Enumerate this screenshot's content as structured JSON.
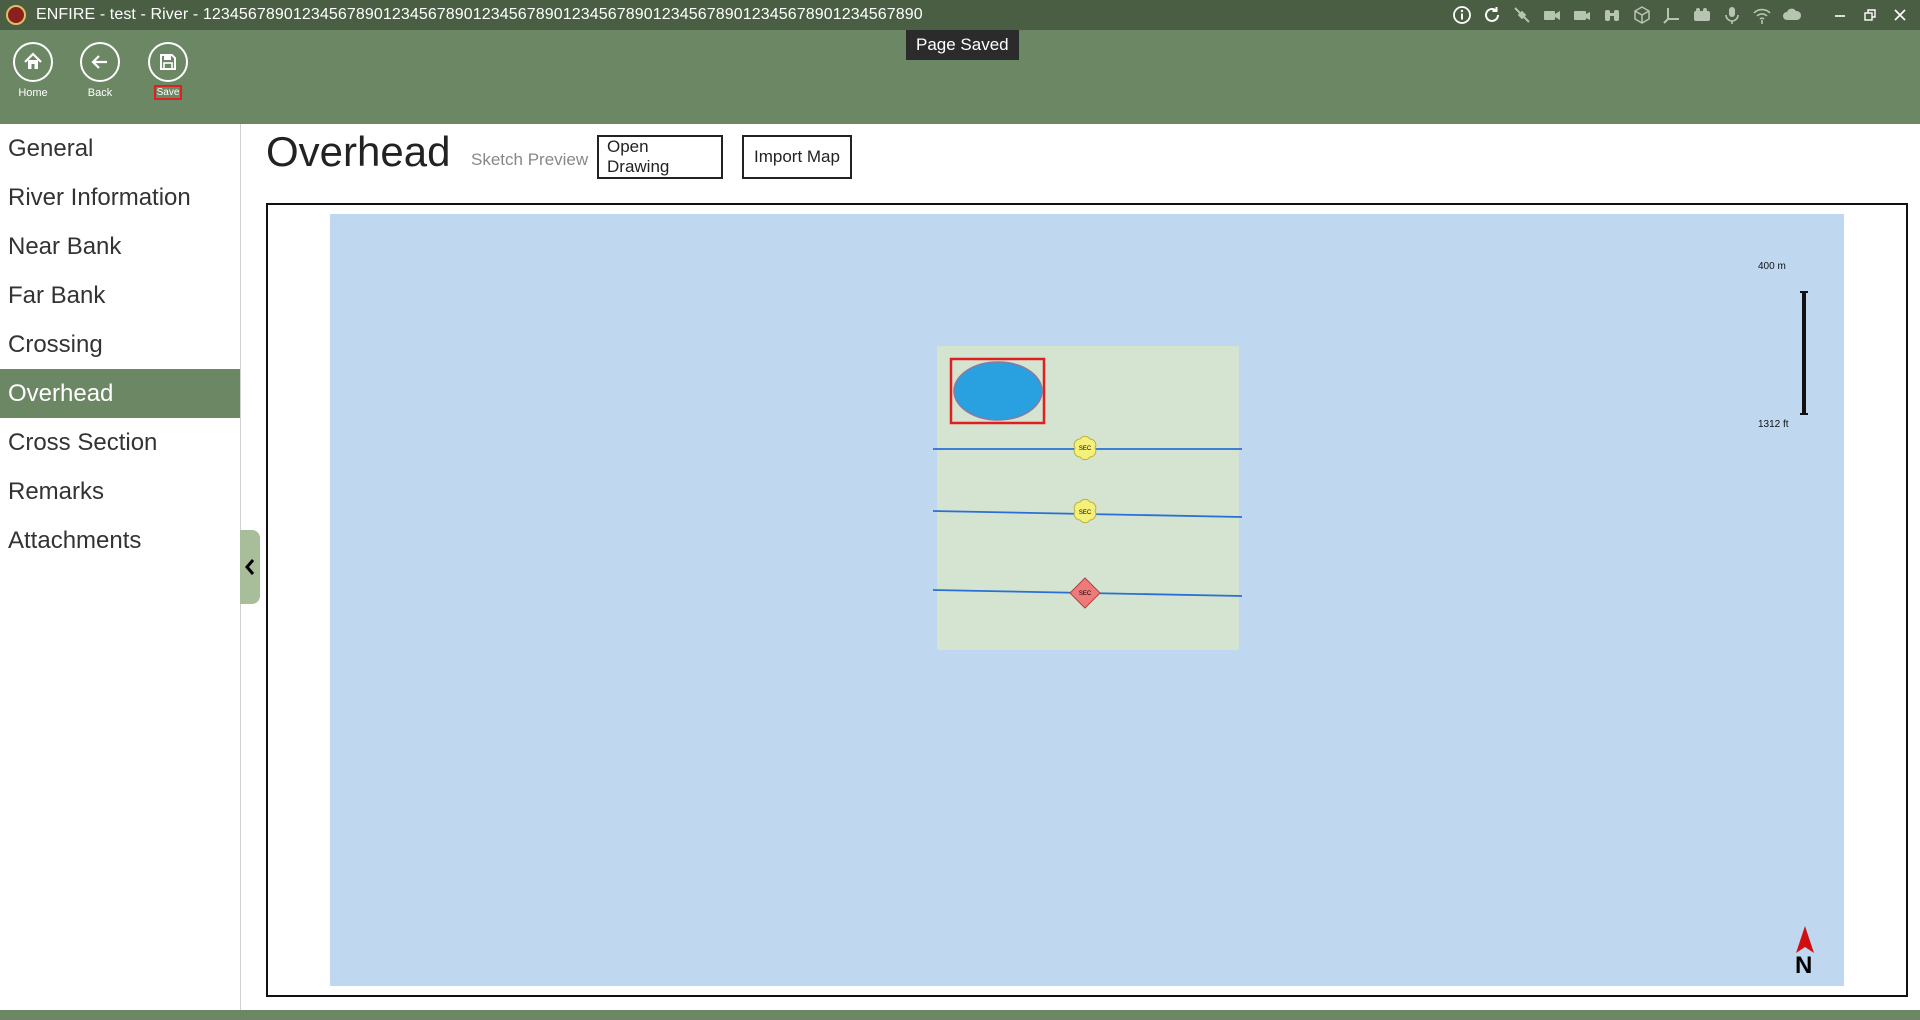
{
  "titlebar": {
    "title": "ENFIRE - test - River - 12345678901234567890123456789012345678901234567890123456789012345678901234567890",
    "icons": [
      "info-icon",
      "refresh-icon",
      "satellite-icon",
      "camera-icon",
      "video-icon",
      "binoculars-icon",
      "cube-icon",
      "axis-icon",
      "radio-icon",
      "microphone-icon",
      "wifi-icon",
      "cloud-icon"
    ],
    "window_controls": [
      "minimize",
      "restore",
      "close"
    ]
  },
  "toolbar": {
    "home_label": "Home",
    "back_label": "Back",
    "save_label": "Save"
  },
  "toast": {
    "text": "Page Saved"
  },
  "sidebar": {
    "items": [
      {
        "label": "General"
      },
      {
        "label": "River Information"
      },
      {
        "label": "Near Bank"
      },
      {
        "label": "Far Bank"
      },
      {
        "label": "Crossing"
      },
      {
        "label": "Overhead",
        "active": true
      },
      {
        "label": "Cross Section"
      },
      {
        "label": "Remarks"
      },
      {
        "label": "Attachments"
      }
    ]
  },
  "main": {
    "title": "Overhead",
    "sketch_preview_label": "Sketch Preview",
    "open_drawing_label": "Open Drawing",
    "import_map_label": "Import Map"
  },
  "map": {
    "scale_top": "400 m",
    "scale_bottom": "1312 ft",
    "north_label": "N",
    "marker_label": "SEC",
    "colors": {
      "water": "#bfd8f0",
      "land": "#d4e4d1",
      "line": "#2a6fd6",
      "marker_yellow": "#f5f07a",
      "marker_red": "#f07a7a",
      "ellipse": "#29a0e0",
      "selection": "#e02020"
    }
  },
  "colors": {
    "titlebar": "#4a5e43",
    "toolbar": "#6b8764",
    "sidebar_active": "#6b8764"
  }
}
